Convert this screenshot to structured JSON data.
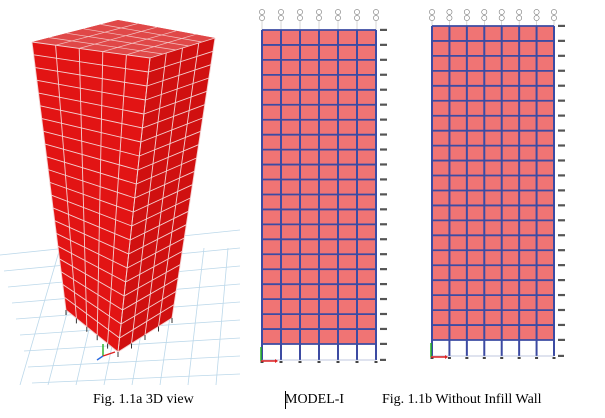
{
  "captions": {
    "view_3d": "Fig. 1.1a 3D view",
    "model": "MODEL-I",
    "without_infill": "Fig. 1.1b Without Infill Wall"
  },
  "colors": {
    "infill": "#f07474",
    "infill_3d": "#e21414",
    "frame": "#3c4ba3",
    "grid": "#bcd8ea",
    "axis_x": "#e02020",
    "axis_y": "#20b020"
  },
  "elevation_1": {
    "bays": 6,
    "stories": 21
  },
  "elevation_2": {
    "bays": 7,
    "stories": 21
  },
  "model_3d": {
    "stories": 21,
    "bays_front": 5,
    "bays_side": 4
  }
}
